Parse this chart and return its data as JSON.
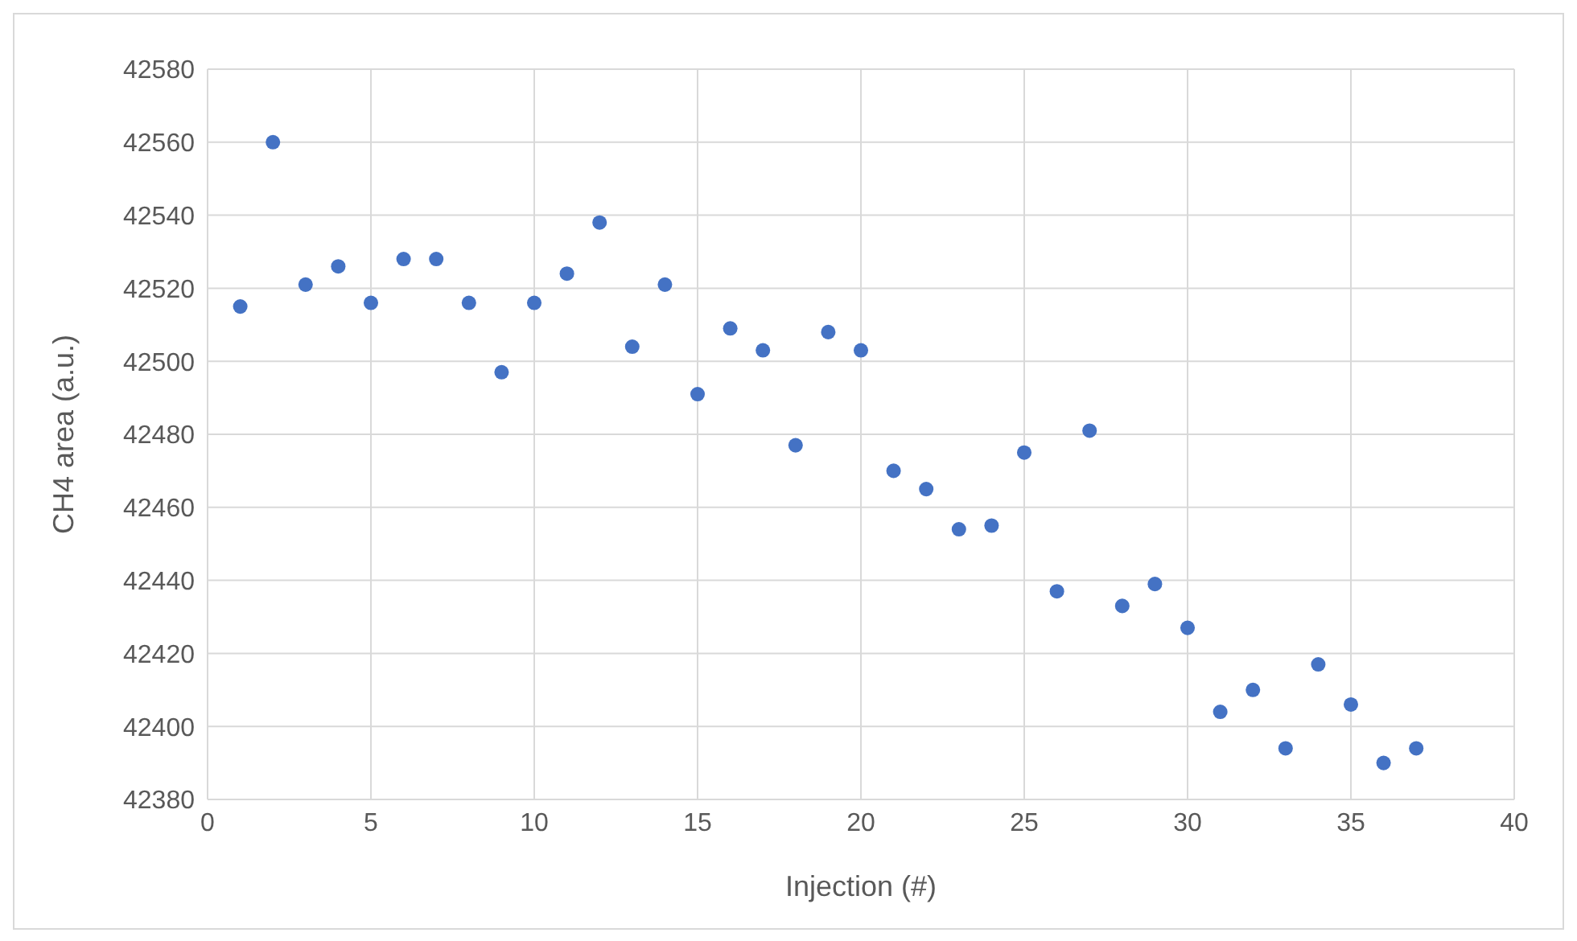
{
  "chart_data": {
    "type": "scatter",
    "xlabel": "Injection (#)",
    "ylabel": "CH4 area (a.u.)",
    "x": [
      1,
      2,
      3,
      4,
      5,
      6,
      7,
      8,
      9,
      10,
      11,
      12,
      13,
      14,
      15,
      16,
      17,
      18,
      19,
      20,
      21,
      22,
      23,
      24,
      25,
      26,
      27,
      28,
      29,
      30,
      31,
      32,
      33,
      34,
      35,
      36,
      37
    ],
    "series": [
      {
        "color": "#4472c4",
        "values": [
          42515,
          42560,
          42521,
          42526,
          42516,
          42528,
          42528,
          42516,
          42497,
          42516,
          42524,
          42538,
          42504,
          42521,
          42491,
          42509,
          42503,
          42477,
          42508,
          42503,
          42470,
          42465,
          42454,
          42455,
          42475,
          42437,
          42481,
          42433,
          42439,
          42427,
          42404,
          42410,
          42394,
          42417,
          42406,
          42390,
          42394
        ]
      }
    ],
    "xlim": [
      0,
      40
    ],
    "xticks": [
      0,
      5,
      10,
      15,
      20,
      25,
      30,
      35,
      40
    ],
    "ylim": [
      42380,
      42580
    ],
    "yticks": [
      42380,
      42400,
      42420,
      42440,
      42460,
      42480,
      42500,
      42520,
      42540,
      42560,
      42580
    ],
    "grid": true,
    "marker": "circle"
  }
}
